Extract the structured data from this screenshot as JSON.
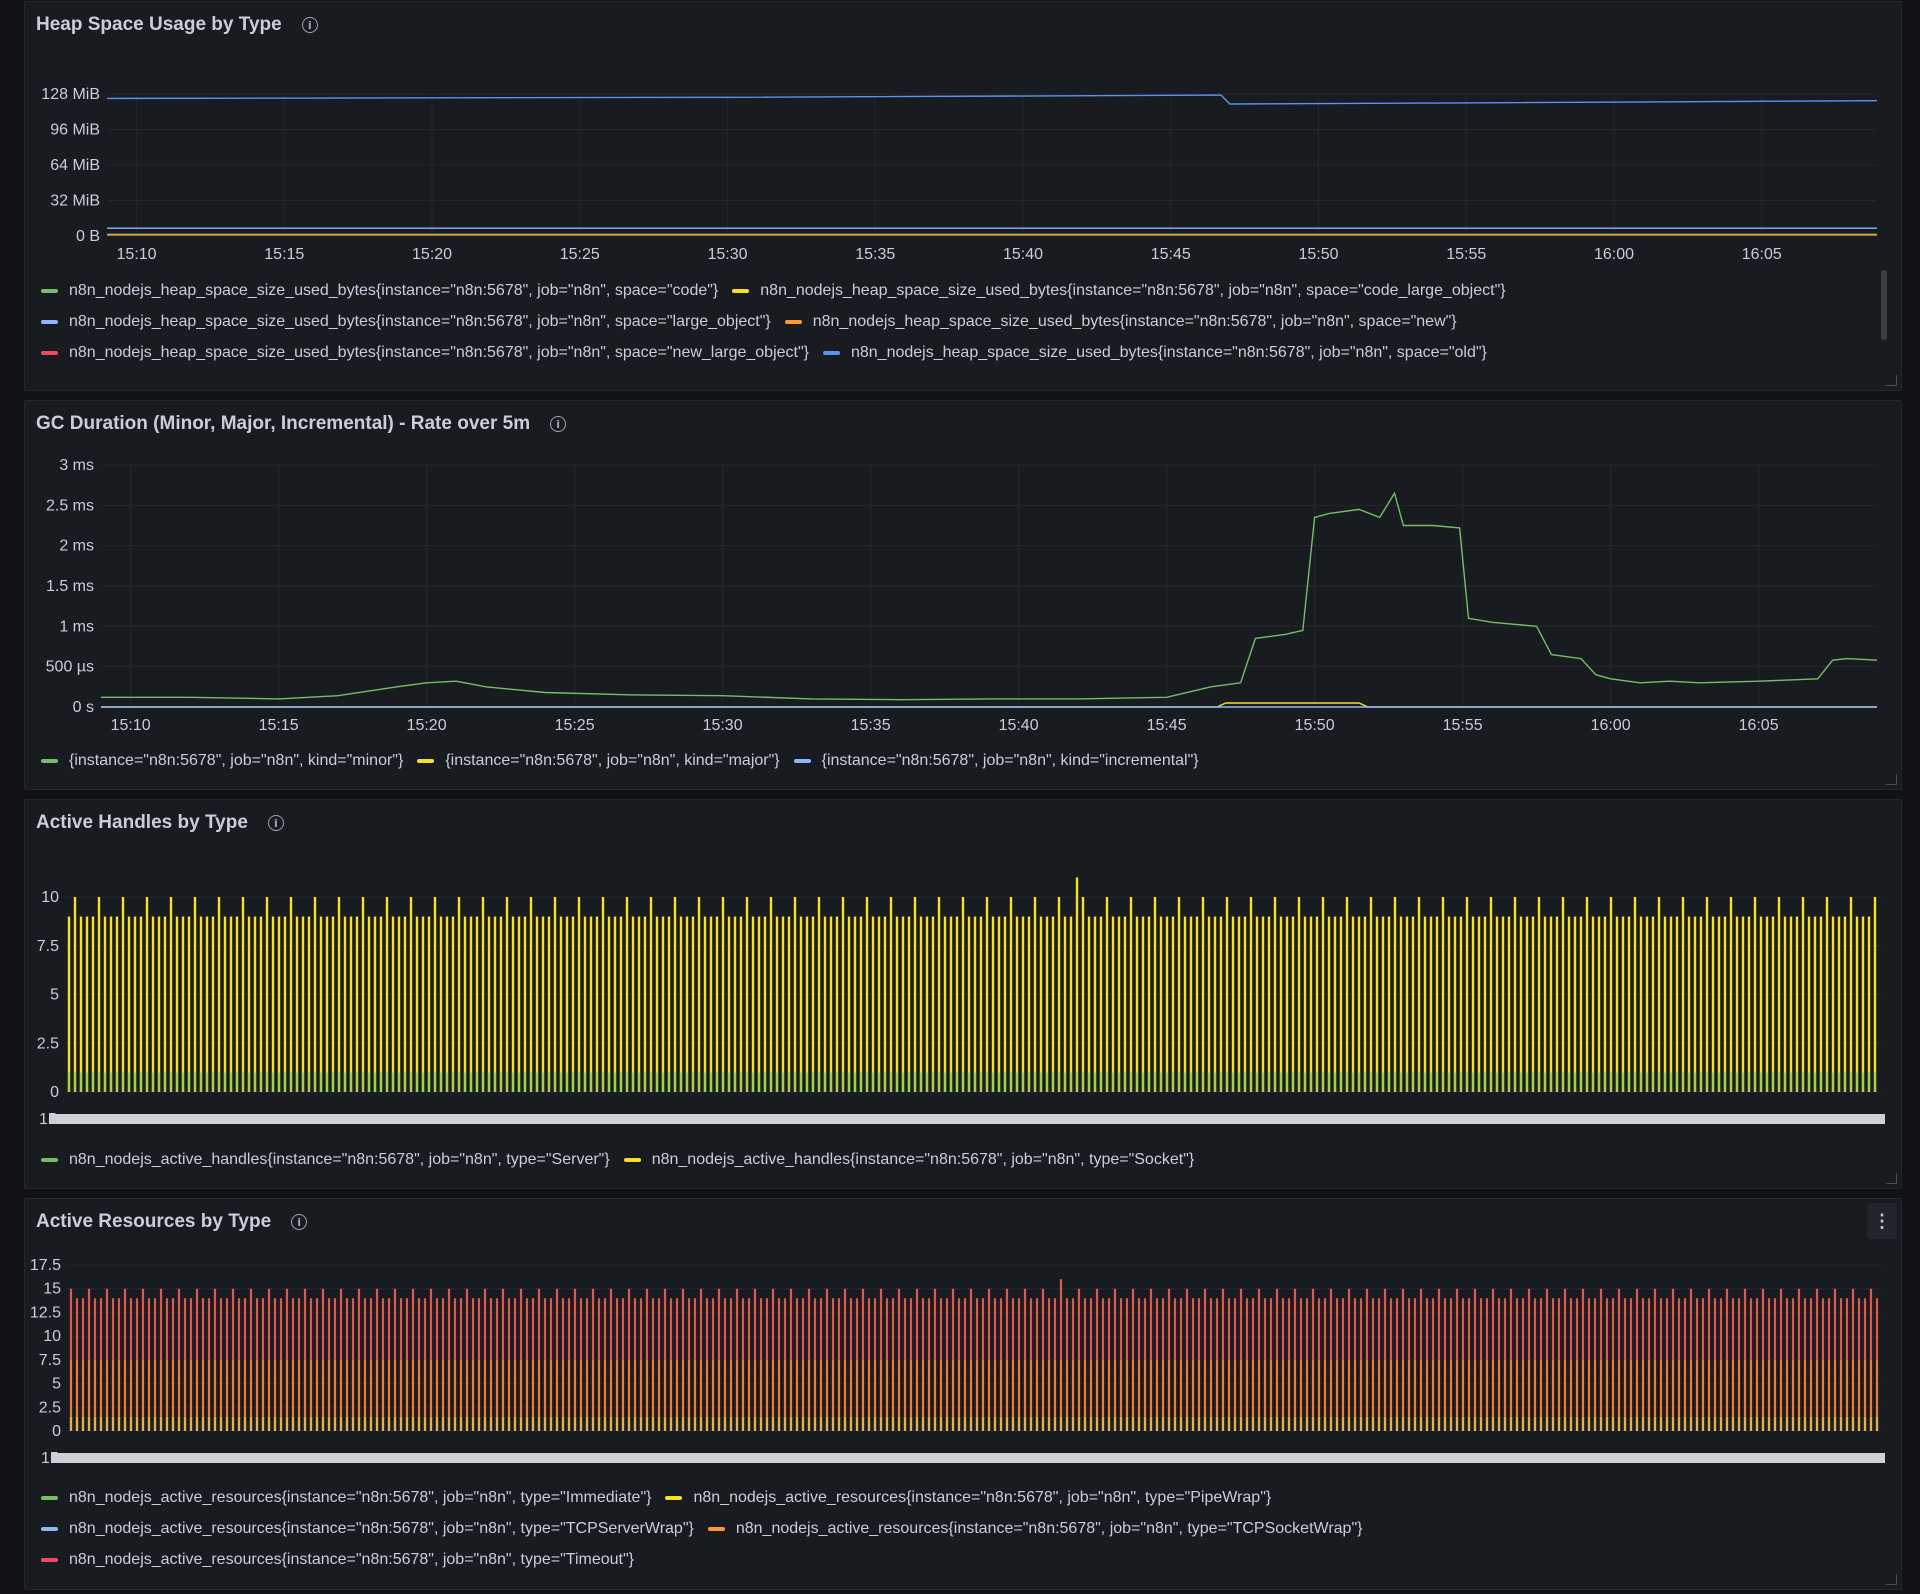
{
  "panels": [
    {
      "title": "Heap Space Usage by Type",
      "legend_rows": [
        [
          {
            "label": "n8n_nodejs_heap_space_size_used_bytes{instance=\"n8n:5678\", job=\"n8n\", space=\"code\"}",
            "color": "#73bf69"
          },
          {
            "label": "n8n_nodejs_heap_space_size_used_bytes{instance=\"n8n:5678\", job=\"n8n\", space=\"code_large_object\"}",
            "color": "#fade2a"
          }
        ],
        [
          {
            "label": "n8n_nodejs_heap_space_size_used_bytes{instance=\"n8n:5678\", job=\"n8n\", space=\"large_object\"}",
            "color": "#8ab8ff"
          },
          {
            "label": "n8n_nodejs_heap_space_size_used_bytes{instance=\"n8n:5678\", job=\"n8n\", space=\"new\"}",
            "color": "#ff9830"
          }
        ],
        [
          {
            "label": "n8n_nodejs_heap_space_size_used_bytes{instance=\"n8n:5678\", job=\"n8n\", space=\"new_large_object\"}",
            "color": "#f2495c"
          },
          {
            "label": "n8n_nodejs_heap_space_size_used_bytes{instance=\"n8n:5678\", job=\"n8n\", space=\"old\"}",
            "color": "#5794f2"
          }
        ]
      ]
    },
    {
      "title": "GC Duration (Minor, Major, Incremental) - Rate over 5m",
      "legend_rows": [
        [
          {
            "label": "{instance=\"n8n:5678\", job=\"n8n\", kind=\"minor\"}",
            "color": "#73bf69"
          },
          {
            "label": "{instance=\"n8n:5678\", job=\"n8n\", kind=\"major\"}",
            "color": "#fade2a"
          },
          {
            "label": "{instance=\"n8n:5678\", job=\"n8n\", kind=\"incremental\"}",
            "color": "#8ab8ff"
          }
        ]
      ]
    },
    {
      "title": "Active Handles by Type",
      "legend_rows": [
        [
          {
            "label": "n8n_nodejs_active_handles{instance=\"n8n:5678\", job=\"n8n\", type=\"Server\"}",
            "color": "#73bf69"
          },
          {
            "label": "n8n_nodejs_active_handles{instance=\"n8n:5678\", job=\"n8n\", type=\"Socket\"}",
            "color": "#fade2a"
          }
        ]
      ]
    },
    {
      "title": "Active Resources by Type",
      "legend_rows": [
        [
          {
            "label": "n8n_nodejs_active_resources{instance=\"n8n:5678\", job=\"n8n\", type=\"Immediate\"}",
            "color": "#73bf69"
          },
          {
            "label": "n8n_nodejs_active_resources{instance=\"n8n:5678\", job=\"n8n\", type=\"PipeWrap\"}",
            "color": "#fade2a"
          }
        ],
        [
          {
            "label": "n8n_nodejs_active_resources{instance=\"n8n:5678\", job=\"n8n\", type=\"TCPServerWrap\"}",
            "color": "#8ab8ff"
          },
          {
            "label": "n8n_nodejs_active_resources{instance=\"n8n:5678\", job=\"n8n\", type=\"TCPSocketWrap\"}",
            "color": "#ff9830"
          }
        ],
        [
          {
            "label": "n8n_nodejs_active_resources{instance=\"n8n:5678\", job=\"n8n\", type=\"Timeout\"}",
            "color": "#f2495c"
          }
        ]
      ]
    }
  ],
  "info_icon_glyph": "i",
  "menu_glyph": "⋮",
  "chart_data": [
    {
      "type": "line",
      "title": "Heap Space Usage by Type",
      "x_ticks": [
        "15:10",
        "15:15",
        "15:20",
        "15:25",
        "15:30",
        "15:35",
        "15:40",
        "15:45",
        "15:50",
        "15:55",
        "16:00",
        "16:05"
      ],
      "x_range_minutes": [
        9,
        68.9
      ],
      "y_ticks": [
        "0 B",
        "32 MiB",
        "64 MiB",
        "96 MiB",
        "128 MiB"
      ],
      "ylim": [
        0,
        128
      ],
      "yunit": "MiB",
      "series": [
        {
          "name": "space=\"old\"",
          "color": "#5794f2",
          "points": [
            [
              9,
              124
            ],
            [
              30,
              125
            ],
            [
              46.7,
              127
            ],
            [
              47,
              119
            ],
            [
              55,
              120
            ],
            [
              68.9,
              122
            ]
          ]
        },
        {
          "name": "space=\"large_object\"",
          "color": "#8ab8ff",
          "points": [
            [
              9,
              7
            ],
            [
              68.9,
              7
            ]
          ]
        },
        {
          "name": "space=\"code\"",
          "color": "#73bf69",
          "points": [
            [
              9,
              1.5
            ],
            [
              68.9,
              1.5
            ]
          ]
        },
        {
          "name": "space=\"new\"",
          "color": "#ff9830",
          "points": [
            [
              9,
              1
            ],
            [
              68.9,
              1
            ]
          ]
        }
      ]
    },
    {
      "type": "line",
      "title": "GC Duration (Minor, Major, Incremental) - Rate over 5m",
      "x_ticks": [
        "15:10",
        "15:15",
        "15:20",
        "15:25",
        "15:30",
        "15:35",
        "15:40",
        "15:45",
        "15:50",
        "15:55",
        "16:00",
        "16:05"
      ],
      "x_range_minutes": [
        9,
        69
      ],
      "y_ticks": [
        "0 s",
        "500 µs",
        "1 ms",
        "1.5 ms",
        "2 ms",
        "2.5 ms",
        "3 ms"
      ],
      "ylim": [
        0,
        3
      ],
      "yunit": "ms",
      "series": [
        {
          "name": "kind=\"minor\"",
          "color": "#73bf69",
          "points": [
            [
              9,
              0.12
            ],
            [
              12,
              0.12
            ],
            [
              15,
              0.1
            ],
            [
              17,
              0.14
            ],
            [
              19,
              0.25
            ],
            [
              20,
              0.3
            ],
            [
              21,
              0.32
            ],
            [
              22,
              0.25
            ],
            [
              24,
              0.18
            ],
            [
              27,
              0.15
            ],
            [
              30,
              0.14
            ],
            [
              33,
              0.1
            ],
            [
              36,
              0.09
            ],
            [
              39,
              0.1
            ],
            [
              42,
              0.1
            ],
            [
              45,
              0.12
            ],
            [
              46.5,
              0.25
            ],
            [
              47.5,
              0.3
            ],
            [
              48,
              0.85
            ],
            [
              49,
              0.9
            ],
            [
              49.6,
              0.95
            ],
            [
              50,
              2.35
            ],
            [
              50.5,
              2.4
            ],
            [
              51.5,
              2.45
            ],
            [
              52.2,
              2.35
            ],
            [
              52.7,
              2.65
            ],
            [
              53,
              2.25
            ],
            [
              54,
              2.25
            ],
            [
              54.9,
              2.22
            ],
            [
              55.2,
              1.1
            ],
            [
              56,
              1.05
            ],
            [
              57.5,
              1.0
            ],
            [
              58,
              0.65
            ],
            [
              59,
              0.6
            ],
            [
              59.5,
              0.4
            ],
            [
              60,
              0.35
            ],
            [
              61,
              0.3
            ],
            [
              62,
              0.32
            ],
            [
              63,
              0.3
            ],
            [
              65,
              0.32
            ],
            [
              67,
              0.35
            ],
            [
              67.5,
              0.58
            ],
            [
              68,
              0.6
            ],
            [
              69,
              0.58
            ]
          ]
        },
        {
          "name": "kind=\"major\"",
          "color": "#fade2a",
          "points": [
            [
              9,
              0
            ],
            [
              46.7,
              0
            ],
            [
              47,
              0.05
            ],
            [
              51.5,
              0.05
            ],
            [
              51.8,
              0
            ],
            [
              69,
              0
            ]
          ]
        },
        {
          "name": "kind=\"incremental\"",
          "color": "#8ab8ff",
          "points": [
            [
              9,
              0
            ],
            [
              69,
              0
            ]
          ]
        }
      ]
    },
    {
      "type": "bar",
      "title": "Active Handles by Type",
      "y_ticks": [
        "0",
        "2.5",
        "5",
        "7.5",
        "10"
      ],
      "ylim": [
        0,
        12
      ],
      "series": [
        {
          "name": "type=\"Server\"",
          "color": "#73bf69",
          "typical": 1
        },
        {
          "name": "type=\"Socket\"",
          "color": "#fade2a",
          "typical": 9,
          "peaks": [
            10,
            11
          ]
        }
      ]
    },
    {
      "type": "bar",
      "title": "Active Resources by Type",
      "y_ticks": [
        "0",
        "2.5",
        "5",
        "7.5",
        "10",
        "12.5",
        "15",
        "17.5"
      ],
      "ylim": [
        0,
        17.5
      ],
      "series": [
        {
          "name": "type=\"Immediate\"",
          "color": "#73bf69",
          "typical": 1
        },
        {
          "name": "type=\"PipeWrap\"",
          "color": "#fade2a",
          "typical": 1
        },
        {
          "name": "type=\"TCPServerWrap\"",
          "color": "#8ab8ff",
          "typical": 1
        },
        {
          "name": "type=\"TCPSocketWrap\"",
          "color": "#ff9830",
          "typical": 7
        },
        {
          "name": "type=\"Timeout\"",
          "color": "#f2495c",
          "typical": 14,
          "peaks": [
            15,
            16
          ]
        }
      ]
    }
  ]
}
